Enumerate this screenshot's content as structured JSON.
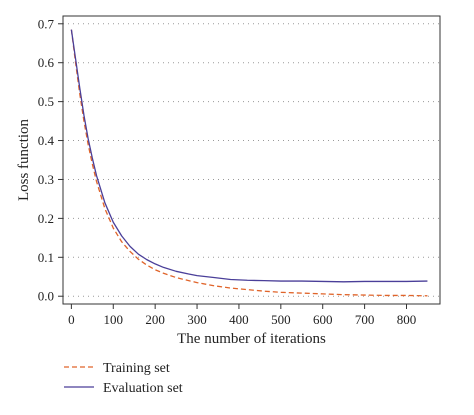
{
  "chart_data": {
    "type": "line",
    "title": "",
    "xlabel": "The number of iterations",
    "ylabel": "Loss function",
    "xlim": [
      -20,
      880
    ],
    "ylim": [
      -0.02,
      0.72
    ],
    "x_ticks": [
      0,
      100,
      200,
      300,
      400,
      500,
      600,
      700,
      800
    ],
    "y_ticks": [
      0.0,
      0.1,
      0.2,
      0.3,
      0.4,
      0.5,
      0.6,
      0.7
    ],
    "y_tick_labels": [
      "0.0",
      "0.1",
      "0.2",
      "0.3",
      "0.4",
      "0.5",
      "0.6",
      "0.7"
    ],
    "grid": "horizontal dotted",
    "legend_position": "bottom-left, below plot",
    "series": [
      {
        "name": "Training set",
        "style": "dashed",
        "color": "#e0642a",
        "x": [
          0,
          10,
          20,
          30,
          40,
          50,
          60,
          80,
          100,
          120,
          140,
          160,
          180,
          200,
          220,
          250,
          280,
          300,
          340,
          380,
          420,
          460,
          500,
          550,
          600,
          650,
          700,
          750,
          800,
          850
        ],
        "y": [
          0.685,
          0.6,
          0.52,
          0.45,
          0.39,
          0.34,
          0.295,
          0.225,
          0.175,
          0.14,
          0.115,
          0.095,
          0.08,
          0.068,
          0.059,
          0.048,
          0.04,
          0.035,
          0.027,
          0.021,
          0.017,
          0.013,
          0.01,
          0.008,
          0.006,
          0.004,
          0.003,
          0.002,
          0.002,
          0.001
        ]
      },
      {
        "name": "Evaluation set",
        "style": "solid",
        "color": "#4a3f99",
        "x": [
          0,
          10,
          20,
          30,
          40,
          50,
          60,
          80,
          100,
          120,
          140,
          160,
          180,
          200,
          220,
          250,
          280,
          300,
          340,
          380,
          420,
          460,
          500,
          550,
          600,
          650,
          700,
          750,
          800,
          850
        ],
        "y": [
          0.685,
          0.61,
          0.535,
          0.465,
          0.405,
          0.355,
          0.31,
          0.24,
          0.19,
          0.155,
          0.128,
          0.108,
          0.094,
          0.083,
          0.074,
          0.064,
          0.057,
          0.053,
          0.048,
          0.043,
          0.041,
          0.04,
          0.039,
          0.039,
          0.038,
          0.037,
          0.038,
          0.038,
          0.038,
          0.039
        ]
      }
    ]
  }
}
